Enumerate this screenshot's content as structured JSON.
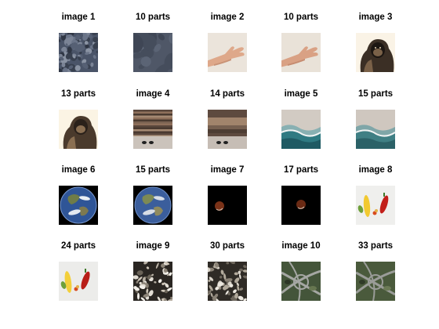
{
  "chart_data": {
    "type": "image-grid",
    "rows": 4,
    "columns": 5,
    "panels": [
      {
        "title": "image 1",
        "kind": "original",
        "content": "rock-texture"
      },
      {
        "title": "10 parts",
        "kind": "segmented",
        "content": "rock-texture"
      },
      {
        "title": "image 2",
        "kind": "original",
        "content": "hand"
      },
      {
        "title": "10 parts",
        "kind": "segmented",
        "content": "hand"
      },
      {
        "title": "image 3",
        "kind": "original",
        "content": "gorilla"
      },
      {
        "title": "13 parts",
        "kind": "segmented",
        "content": "gorilla"
      },
      {
        "title": "image 4",
        "kind": "original",
        "content": "canyon-cliff"
      },
      {
        "title": "14 parts",
        "kind": "segmented",
        "content": "canyon-cliff"
      },
      {
        "title": "image 5",
        "kind": "original",
        "content": "beach-waves"
      },
      {
        "title": "15 parts",
        "kind": "segmented",
        "content": "beach-waves"
      },
      {
        "title": "image 6",
        "kind": "original",
        "content": "earth"
      },
      {
        "title": "15 parts",
        "kind": "segmented",
        "content": "earth"
      },
      {
        "title": "image 7",
        "kind": "original",
        "content": "eclipsed-moon"
      },
      {
        "title": "17 parts",
        "kind": "segmented",
        "content": "eclipsed-moon"
      },
      {
        "title": "image 8",
        "kind": "original",
        "content": "vegetables"
      },
      {
        "title": "24 parts",
        "kind": "segmented",
        "content": "vegetables"
      },
      {
        "title": "image 9",
        "kind": "original",
        "content": "pebbles"
      },
      {
        "title": "30 parts",
        "kind": "segmented",
        "content": "pebbles"
      },
      {
        "title": "image 10",
        "kind": "original",
        "content": "highway-interchange"
      },
      {
        "title": "33 parts",
        "kind": "segmented",
        "content": "highway-interchange"
      }
    ]
  }
}
